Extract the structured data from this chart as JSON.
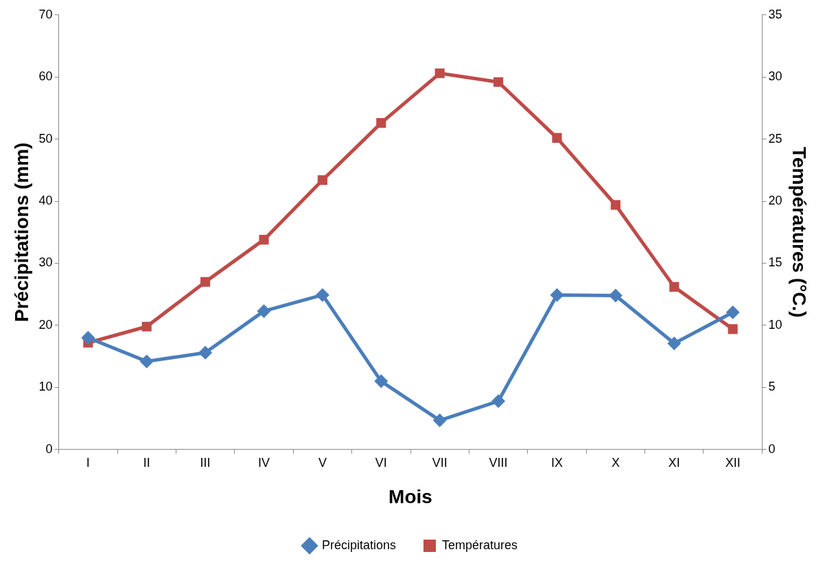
{
  "chart_data": {
    "type": "line",
    "xlabel": "Mois",
    "ylabel": "Précipitations (mm)",
    "y2label": "Températures (°C.)",
    "categories": [
      "I",
      "II",
      "III",
      "IV",
      "V",
      "VI",
      "VII",
      "VIII",
      "IX",
      "X",
      "XI",
      "XII"
    ],
    "series": [
      {
        "name": "Précipitations",
        "color": "#4a7ebb",
        "marker": "diamond",
        "values": [
          18.0,
          14.2,
          15.6,
          22.3,
          24.9,
          11.0,
          4.7,
          7.8,
          24.9,
          24.8,
          17.1,
          22.1
        ]
      },
      {
        "name": "Températures",
        "color": "#be4b48",
        "marker": "square",
        "axis": "y2",
        "values": [
          8.6,
          9.9,
          13.5,
          16.9,
          21.7,
          26.3,
          30.3,
          29.6,
          25.1,
          19.7,
          13.1,
          9.7
        ]
      }
    ],
    "ylim": [
      0,
      70
    ],
    "yticks": [
      0,
      10,
      20,
      30,
      40,
      50,
      60,
      70
    ],
    "y2lim": [
      0,
      35
    ],
    "y2ticks": [
      0,
      5,
      10,
      15,
      20,
      25,
      30,
      35
    ],
    "grid": false,
    "legend": "bottom",
    "line_style": "solid"
  }
}
